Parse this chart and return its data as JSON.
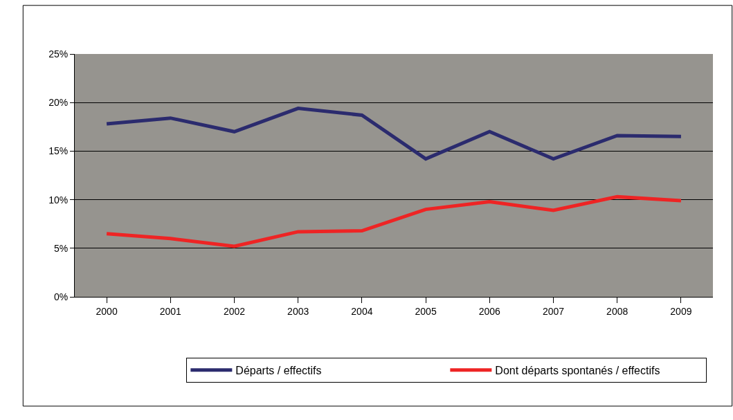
{
  "chart_data": {
    "type": "line",
    "categories": [
      "2000",
      "2001",
      "2002",
      "2003",
      "2004",
      "2005",
      "2006",
      "2007",
      "2008",
      "2009"
    ],
    "series": [
      {
        "name": "Départs / effectifs",
        "color": "#2b2b6e",
        "values": [
          17.8,
          18.4,
          17.0,
          19.4,
          18.7,
          14.2,
          17.0,
          14.2,
          16.6,
          16.5
        ]
      },
      {
        "name": "Dont départs spontanés / effectifs",
        "color": "#ee2424",
        "values": [
          6.5,
          6.0,
          5.2,
          6.7,
          6.8,
          9.0,
          9.8,
          8.9,
          10.3,
          9.9
        ]
      }
    ],
    "ylim": [
      0,
      25
    ],
    "yticks": [
      {
        "value": 0,
        "label": "0%"
      },
      {
        "value": 5,
        "label": "5%"
      },
      {
        "value": 10,
        "label": "10%"
      },
      {
        "value": 15,
        "label": "15%"
      },
      {
        "value": 20,
        "label": "20%"
      },
      {
        "value": 25,
        "label": "25%"
      }
    ],
    "grid": "y",
    "legend": "bottom",
    "marker": "none",
    "line_style": "solid"
  }
}
